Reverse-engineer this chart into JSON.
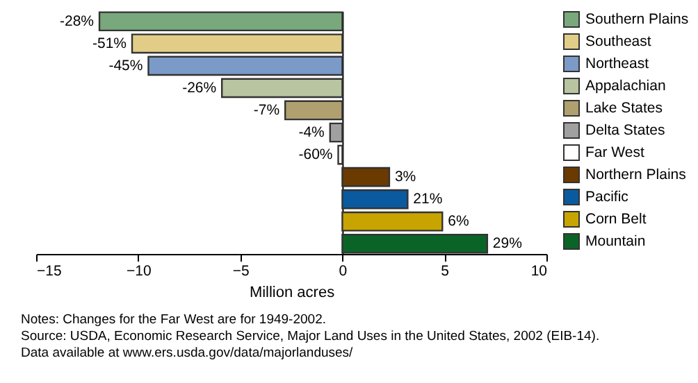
{
  "chart_data": {
    "type": "bar",
    "orientation": "horizontal",
    "xlabel": "Million acres",
    "categories": [
      null,
      null,
      null,
      null,
      null,
      null,
      null,
      null,
      null,
      null,
      null
    ],
    "series": [
      {
        "name": "Southern Plains",
        "color": "#78a87c",
        "values": [
          -11.9,
          null,
          null,
          null,
          null,
          null,
          null,
          null,
          null,
          null,
          null
        ]
      },
      {
        "name": "Southeast",
        "color": "#e2cd88",
        "values": [
          null,
          -10.3,
          null,
          null,
          null,
          null,
          null,
          null,
          null,
          null,
          null
        ]
      },
      {
        "name": "Northeast",
        "color": "#7b9ac8",
        "values": [
          null,
          null,
          -9.5,
          null,
          null,
          null,
          null,
          null,
          null,
          null,
          null
        ]
      },
      {
        "name": "Appalachian",
        "color": "#b9c4a0",
        "values": [
          null,
          null,
          null,
          -5.9,
          null,
          null,
          null,
          null,
          null,
          null,
          null
        ]
      },
      {
        "name": "Lake States",
        "color": "#b0a070",
        "values": [
          null,
          null,
          null,
          null,
          -2.8,
          null,
          null,
          null,
          null,
          null,
          null
        ]
      },
      {
        "name": "Delta States",
        "color": "#a0a0a0",
        "values": [
          null,
          null,
          null,
          null,
          null,
          -0.6,
          null,
          null,
          null,
          null,
          null
        ]
      },
      {
        "name": "Far West",
        "color": "#ffffff",
        "values": [
          null,
          null,
          null,
          null,
          null,
          null,
          -0.2,
          null,
          null,
          null,
          null
        ]
      },
      {
        "name": "Northern Plains",
        "color": "#6b3a00",
        "values": [
          null,
          null,
          null,
          null,
          null,
          null,
          null,
          2.3,
          null,
          null,
          null
        ]
      },
      {
        "name": "Pacific",
        "color": "#0a5aa0",
        "values": [
          null,
          null,
          null,
          null,
          null,
          null,
          null,
          null,
          3.2,
          null,
          null
        ]
      },
      {
        "name": "Corn Belt",
        "color": "#c8a400",
        "values": [
          null,
          null,
          null,
          null,
          null,
          null,
          null,
          null,
          null,
          4.9,
          null
        ]
      },
      {
        "name": "Mountain",
        "color": "#0a6428",
        "values": [
          null,
          null,
          null,
          null,
          null,
          null,
          null,
          null,
          null,
          null,
          7.1
        ]
      }
    ],
    "xlim": [
      -15,
      10
    ],
    "xticks": [
      -15,
      -10,
      -5,
      0,
      5,
      10
    ],
    "legend": "right",
    "tick_labels": "x",
    "annotations": [
      {
        "text": "-28%",
        "x": -11.9
      },
      {
        "text": "-51%",
        "x": -10.3
      },
      {
        "text": "-45%",
        "x": -9.5
      },
      {
        "text": "-26%",
        "x": -5.9
      },
      {
        "text": "-7%",
        "x": -2.8
      },
      {
        "text": "-4%",
        "x": -0.6
      },
      {
        "text": "-60%",
        "x": -0.2
      },
      {
        "text": "3%",
        "x": 2.3
      },
      {
        "text": "21%",
        "x": 3.2
      },
      {
        "text": "6%",
        "x": 4.9
      },
      {
        "text": "29%",
        "x": 7.1
      },
      "Notes: Changes for the Far West are for 1949-2002.",
      "Source: USDA, Economic Research Service, Major Land Uses in the United States, 2002 (EIB-14).",
      "Data available at www.ers.usda.gov/data/majorlanduses/"
    ]
  }
}
